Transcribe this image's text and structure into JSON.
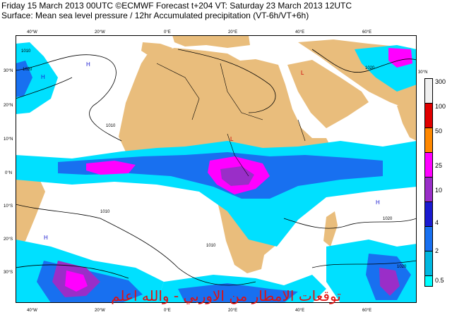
{
  "header": {
    "line1": "Friday 15 March 2013 00UTC ©ECMWF Forecast t+204 VT: Saturday 23 March 2013 12UTC",
    "line2": "Surface: Mean sea level pressure / 12hr Accumulated precipitation (VT-6h/VT+6h)"
  },
  "axes": {
    "top_lon": [
      "40°W",
      "20°W",
      "0°E",
      "20°E",
      "40°E",
      "60°E"
    ],
    "bottom_lon": [
      "40°W",
      "20°W",
      "0°E",
      "20°E",
      "40°E",
      "60°E"
    ],
    "left_lat": [
      "30°N",
      "20°N",
      "10°N",
      "0°N",
      "10°S",
      "20°S",
      "30°S"
    ],
    "right_lat": [
      "30°N"
    ]
  },
  "isobars": {
    "labels": [
      "1010",
      "1020",
      "1010",
      "1010",
      "1020",
      "1020",
      "1010",
      "1020"
    ]
  },
  "pressure_centers": [
    "H",
    "H",
    "H",
    "H",
    "L",
    "L"
  ],
  "legend": {
    "levels": [
      "300",
      "100",
      "50",
      "25",
      "10",
      "4",
      "2",
      "0.5"
    ],
    "colors": [
      "#f0f0f0",
      "#e00000",
      "#ff8800",
      "#ff00ff",
      "#9a2ec8",
      "#1a1ad0",
      "#1870f0",
      "#00b8e0",
      "#00ffff"
    ]
  },
  "caption": "توقعات الامطار من الاوربي - والله اعلم"
}
